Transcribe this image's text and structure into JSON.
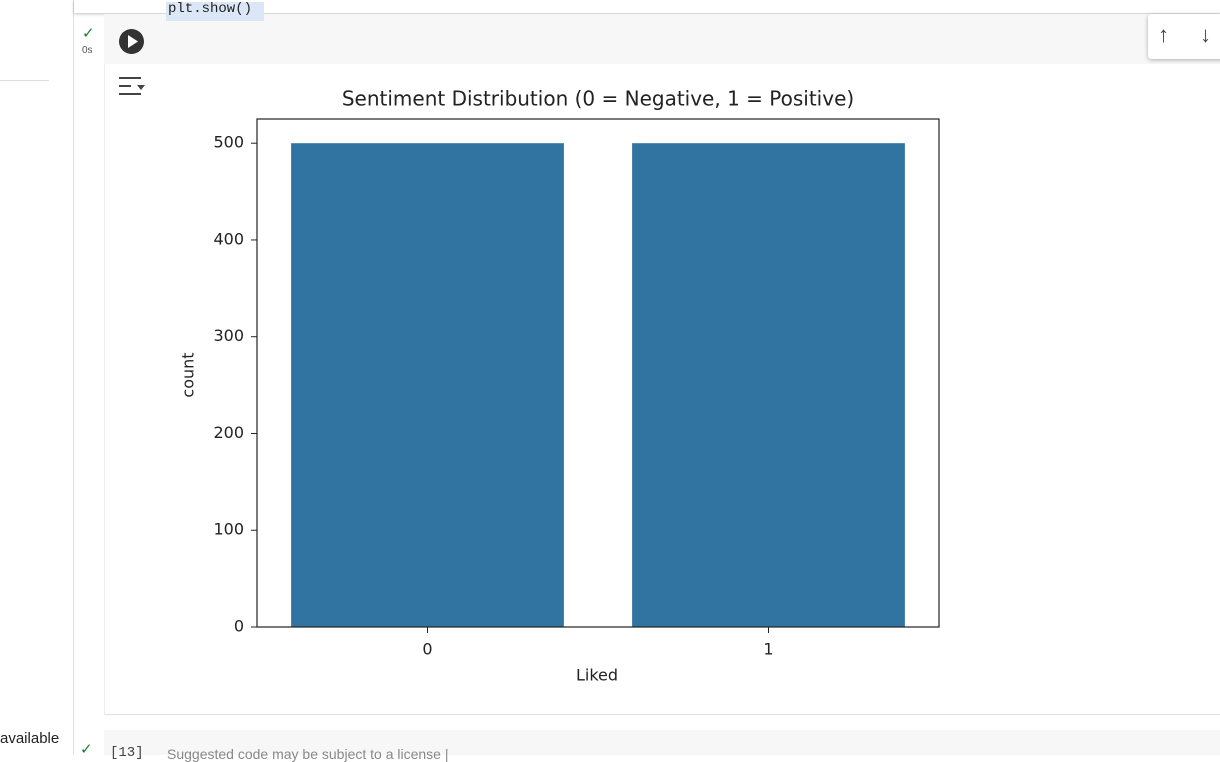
{
  "code_line": "plt.show()",
  "exec_time": "0s",
  "sidebar_text": "available",
  "next_cell_label": "[13]",
  "next_cell_note": "Suggested code may be subject to a license |",
  "chart_data": {
    "type": "bar",
    "title": "Sentiment Distribution (0 = Negative, 1 = Positive)",
    "x_label": "Liked",
    "y_label": "count",
    "categories": [
      "0",
      "1"
    ],
    "values": [
      500,
      500
    ],
    "color": "#3274a1",
    "ylim": [
      0,
      525
    ],
    "yticks": [
      0,
      100,
      200,
      300,
      400,
      500
    ],
    "grid": false
  }
}
